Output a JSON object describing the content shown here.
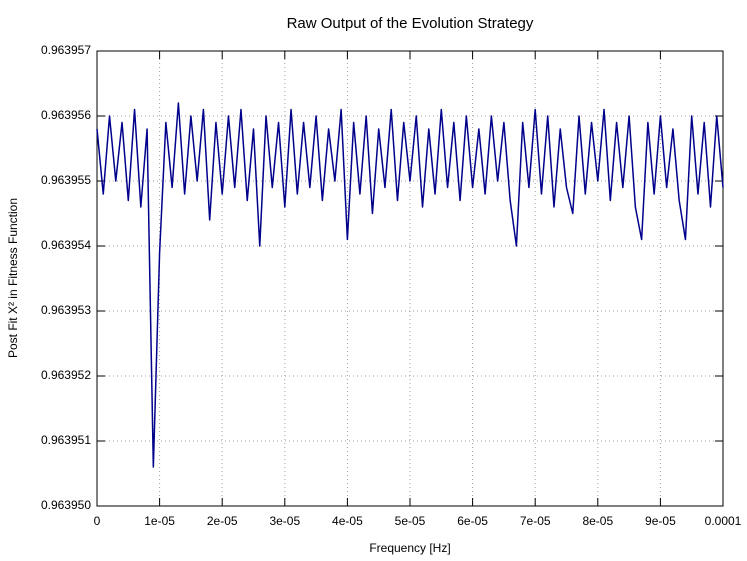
{
  "chart_data": {
    "type": "line",
    "title": "Raw Output of the Evolution Strategy",
    "xlabel": "Frequency [Hz]",
    "ylabel": "Post Fit X² in Fitness Function",
    "x": [
      0,
      1e-06,
      2e-06,
      3e-06,
      4e-06,
      5e-06,
      6e-06,
      7e-06,
      8e-06,
      9e-06,
      1e-05,
      1.1e-05,
      1.2e-05,
      1.3e-05,
      1.4e-05,
      1.5e-05,
      1.6e-05,
      1.7e-05,
      1.8e-05,
      1.9e-05,
      2e-05,
      2.1e-05,
      2.2e-05,
      2.3e-05,
      2.4e-05,
      2.5e-05,
      2.6e-05,
      2.7e-05,
      2.8e-05,
      2.9e-05,
      3e-05,
      3.1e-05,
      3.2e-05,
      3.3e-05,
      3.4e-05,
      3.5e-05,
      3.6e-05,
      3.7e-05,
      3.8e-05,
      3.9e-05,
      4e-05,
      4.1e-05,
      4.2e-05,
      4.3e-05,
      4.4e-05,
      4.5e-05,
      4.6e-05,
      4.7e-05,
      4.8e-05,
      4.9e-05,
      5e-05,
      5.1e-05,
      5.2e-05,
      5.3e-05,
      5.4e-05,
      5.5e-05,
      5.6e-05,
      5.7e-05,
      5.8e-05,
      5.9e-05,
      6e-05,
      6.1e-05,
      6.2e-05,
      6.3e-05,
      6.4e-05,
      6.5e-05,
      6.6e-05,
      6.7e-05,
      6.8e-05,
      6.9e-05,
      7e-05,
      7.1e-05,
      7.2e-05,
      7.3e-05,
      7.4e-05,
      7.5e-05,
      7.6e-05,
      7.7e-05,
      7.8e-05,
      7.9e-05,
      8e-05,
      8.1e-05,
      8.2e-05,
      8.3e-05,
      8.4e-05,
      8.5e-05,
      8.6e-05,
      8.7e-05,
      8.8e-05,
      8.9e-05,
      9e-05,
      9.1e-05,
      9.2e-05,
      9.3e-05,
      9.4e-05,
      9.5e-05,
      9.6e-05,
      9.7e-05,
      9.8e-05,
      9.9e-05,
      0.0001
    ],
    "series": [
      {
        "color": "#00008b",
        "values": [
          0.9639558,
          0.9639548,
          0.963956,
          0.963955,
          0.9639559,
          0.9639547,
          0.9639561,
          0.9639546,
          0.9639558,
          0.9639506,
          0.9639539,
          0.9639559,
          0.9639549,
          0.9639562,
          0.9639548,
          0.963956,
          0.963955,
          0.9639561,
          0.9639544,
          0.9639559,
          0.9639548,
          0.963956,
          0.9639549,
          0.9639561,
          0.9639547,
          0.9639558,
          0.963954,
          0.963956,
          0.9639549,
          0.9639559,
          0.9639546,
          0.9639561,
          0.9639548,
          0.9639559,
          0.9639549,
          0.963956,
          0.9639547,
          0.9639558,
          0.963955,
          0.9639561,
          0.9639541,
          0.9639559,
          0.9639548,
          0.963956,
          0.9639545,
          0.9639558,
          0.9639549,
          0.9639561,
          0.9639547,
          0.9639559,
          0.963955,
          0.963956,
          0.9639546,
          0.9639558,
          0.9639548,
          0.9639561,
          0.9639549,
          0.9639559,
          0.9639547,
          0.963956,
          0.9639549,
          0.9639558,
          0.9639548,
          0.963956,
          0.963955,
          0.9639559,
          0.9639547,
          0.963954,
          0.9639559,
          0.9639549,
          0.9639561,
          0.9639548,
          0.963956,
          0.9639546,
          0.9639558,
          0.9639549,
          0.9639545,
          0.963956,
          0.9639548,
          0.9639559,
          0.963955,
          0.9639561,
          0.9639547,
          0.9639559,
          0.9639549,
          0.963956,
          0.9639546,
          0.9639541,
          0.9639559,
          0.9639548,
          0.963956,
          0.9639549,
          0.9639558,
          0.9639547,
          0.9639541,
          0.963956,
          0.9639548,
          0.9639559,
          0.9639546,
          0.963956,
          0.9639549
        ]
      }
    ],
    "xlim": [
      0,
      0.0001
    ],
    "xticks": [
      0,
      {
        "value": 1e-05,
        "label": "1e-05"
      },
      {
        "value": 2e-05,
        "label": "2e-05"
      },
      {
        "value": 3e-05,
        "label": "3e-05"
      },
      {
        "value": 4e-05,
        "label": "4e-05"
      },
      {
        "value": 5e-05,
        "label": "5e-05"
      },
      {
        "value": 6e-05,
        "label": "6e-05"
      },
      {
        "value": 7e-05,
        "label": "7e-05"
      },
      {
        "value": 8e-05,
        "label": "8e-05"
      },
      {
        "value": 9e-05,
        "label": "9e-05"
      },
      0.0001
    ],
    "ylim": [
      0.96395,
      0.963957
    ],
    "yticks": [
      {
        "value": 0.96395,
        "label": "0.963950"
      },
      0.963951,
      0.963952,
      0.963953,
      0.963954,
      0.963955,
      0.963956,
      0.963957
    ],
    "grid": true
  }
}
